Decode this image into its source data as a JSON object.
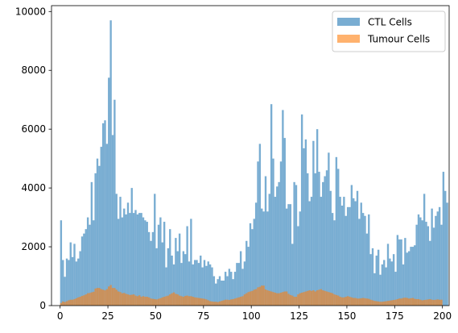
{
  "chart_data": {
    "type": "histogram",
    "bin_width": 1,
    "x_bin_starts_from": 0,
    "xlim": [
      -4.5,
      203.5
    ],
    "ylim": [
      0,
      10200
    ],
    "xticks": [
      0,
      25,
      50,
      75,
      100,
      125,
      150,
      175,
      200
    ],
    "yticks": [
      0,
      2000,
      4000,
      6000,
      8000,
      10000
    ],
    "title": "",
    "xlabel": "",
    "ylabel": "",
    "grid": false,
    "legend_position": "upper-right",
    "series": [
      {
        "name": "CTL Cells",
        "color": "#1f77b4",
        "alpha": 0.6,
        "values": [
          2900,
          1550,
          980,
          1600,
          1550,
          2150,
          1650,
          2100,
          1500,
          1600,
          1850,
          2350,
          2450,
          2600,
          3000,
          2750,
          4200,
          2900,
          4500,
          5000,
          4750,
          5400,
          6200,
          6300,
          5500,
          7750,
          9700,
          5800,
          7000,
          3800,
          2950,
          3700,
          3000,
          3300,
          3100,
          3500,
          3150,
          4000,
          3150,
          3250,
          3100,
          3150,
          3150,
          3000,
          2900,
          2850,
          2500,
          2200,
          2500,
          3800,
          1950,
          2750,
          3000,
          2150,
          2850,
          1300,
          1950,
          2600,
          1700,
          1400,
          2300,
          1850,
          2450,
          1450,
          1850,
          1750,
          2700,
          1500,
          2950,
          1400,
          1550,
          1550,
          1450,
          1700,
          1300,
          1550,
          1350,
          1500,
          1400,
          1300,
          1000,
          750,
          900,
          1000,
          850,
          850,
          1150,
          1000,
          1250,
          1150,
          900,
          1150,
          1450,
          1450,
          1850,
          1250,
          1500,
          2200,
          2000,
          2800,
          2600,
          2950,
          3500,
          4900,
          5500,
          3300,
          3200,
          4400,
          3200,
          3800,
          6850,
          5000,
          3700,
          4050,
          4200,
          4900,
          6650,
          5700,
          3300,
          3450,
          3450,
          2100,
          4200,
          4100,
          2700,
          3200,
          6500,
          5350,
          5650,
          4500,
          3550,
          3700,
          5600,
          4500,
          6000,
          4550,
          3700,
          4200,
          4400,
          4600,
          5200,
          3900,
          3150,
          2900,
          5050,
          4650,
          3700,
          3400,
          3700,
          3050,
          3350,
          3350,
          4100,
          3650,
          3550,
          3900,
          2950,
          3500,
          3150,
          3050,
          2450,
          3100,
          1750,
          1950,
          1100,
          1700,
          1900,
          1050,
          1400,
          1550,
          1300,
          2100,
          1600,
          1500,
          1750,
          1150,
          2400,
          2250,
          2250,
          1400,
          2300,
          1800,
          1850,
          2000,
          2000,
          2050,
          2750,
          3100,
          3000,
          2900,
          3800,
          2850,
          2700,
          2200,
          3300,
          2650,
          3050,
          3200,
          3350,
          2750,
          4550,
          3900,
          3500
        ]
      },
      {
        "name": "Tumour Cells",
        "color": "#ff7f0e",
        "alpha": 0.6,
        "values": [
          90,
          140,
          120,
          150,
          180,
          200,
          200,
          220,
          250,
          280,
          300,
          330,
          350,
          380,
          420,
          430,
          450,
          470,
          580,
          600,
          600,
          560,
          540,
          520,
          560,
          650,
          700,
          600,
          600,
          540,
          480,
          460,
          420,
          430,
          400,
          380,
          360,
          370,
          380,
          340,
          320,
          350,
          300,
          320,
          300,
          300,
          280,
          240,
          230,
          220,
          210,
          230,
          250,
          280,
          300,
          320,
          340,
          380,
          420,
          450,
          400,
          380,
          340,
          320,
          300,
          330,
          340,
          320,
          320,
          300,
          280,
          270,
          260,
          250,
          240,
          230,
          210,
          180,
          150,
          140,
          130,
          130,
          120,
          140,
          160,
          180,
          200,
          200,
          190,
          210,
          220,
          240,
          260,
          280,
          300,
          320,
          380,
          420,
          460,
          480,
          500,
          540,
          560,
          620,
          640,
          680,
          680,
          550,
          520,
          500,
          480,
          460,
          440,
          420,
          420,
          440,
          460,
          480,
          480,
          400,
          360,
          340,
          300,
          300,
          380,
          420,
          440,
          460,
          480,
          500,
          520,
          500,
          520,
          480,
          520,
          540,
          560,
          520,
          500,
          480,
          460,
          440,
          420,
          380,
          360,
          340,
          300,
          280,
          280,
          300,
          320,
          300,
          280,
          260,
          260,
          240,
          240,
          250,
          260,
          250,
          240,
          230,
          200,
          180,
          160,
          150,
          140,
          130,
          130,
          140,
          150,
          160,
          170,
          180,
          190,
          200,
          220,
          240,
          240,
          260,
          270,
          260,
          240,
          250,
          260,
          230,
          220,
          220,
          200,
          180,
          190,
          200,
          210,
          220,
          200,
          190,
          200,
          210,
          200,
          200
        ]
      }
    ]
  }
}
